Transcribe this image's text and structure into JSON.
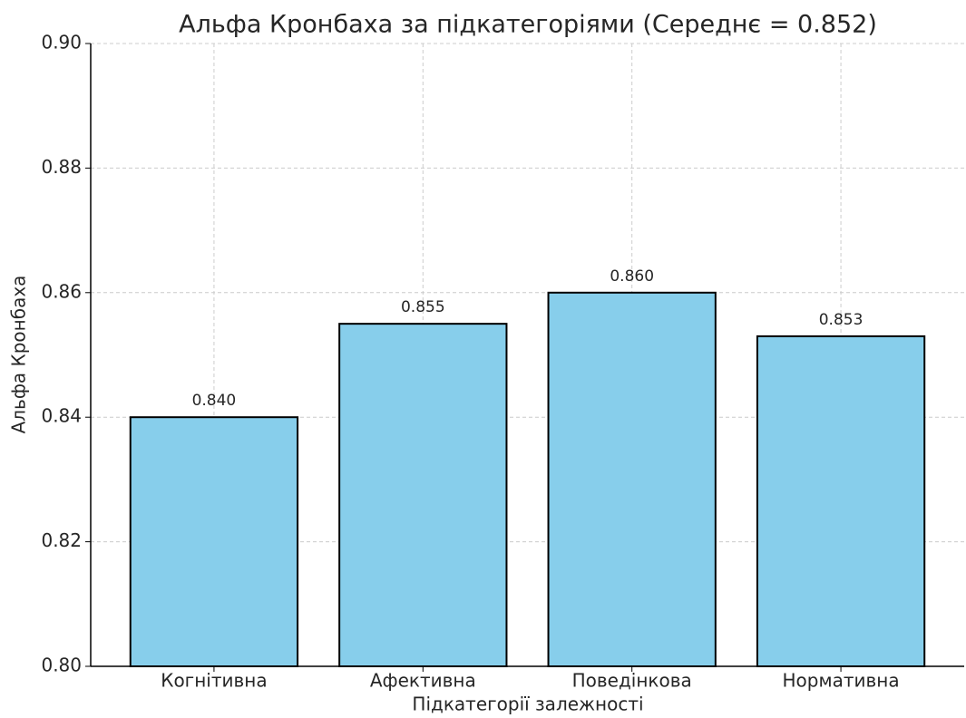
{
  "chart_data": {
    "type": "bar",
    "title": "Альфа Кронбаха за підкатегоріями (Середнє = 0.852)",
    "x_label": "Підкатегорії залежності",
    "y_label": "Альфа Кронбаха",
    "categories": [
      "Когнітивна",
      "Афективна",
      "Поведінкова",
      "Нормативна"
    ],
    "values": [
      0.84,
      0.855,
      0.86,
      0.853
    ],
    "value_labels": [
      "0.840",
      "0.855",
      "0.860",
      "0.853"
    ],
    "color": "#87ceeb",
    "edge_color": "#000000",
    "ylim": [
      0.8,
      0.9
    ],
    "yticks": [
      {
        "value": 0.8,
        "label": "0.80"
      },
      0.82,
      0.84,
      0.86,
      0.88,
      {
        "value": 0.9,
        "label": "0.90"
      }
    ],
    "grid": true
  }
}
